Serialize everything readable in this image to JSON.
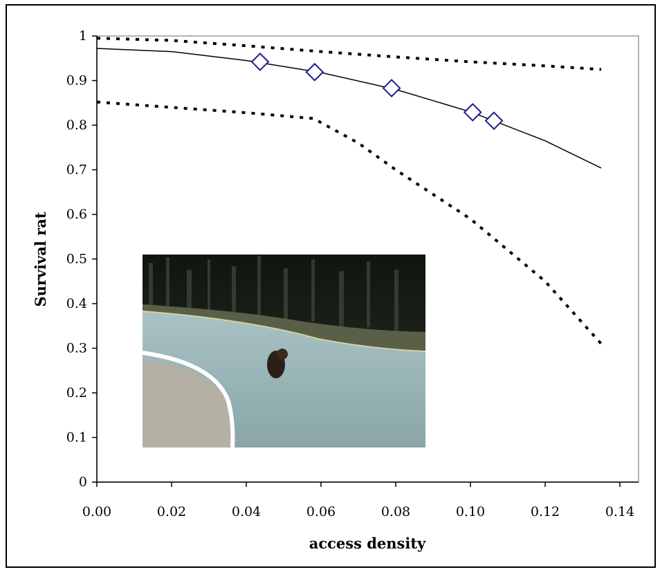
{
  "chart_data": {
    "type": "line",
    "xlabel": "access density",
    "ylabel": "Survival rat",
    "xlim": [
      0,
      0.145
    ],
    "ylim": [
      0,
      1
    ],
    "x_ticks": [
      "0.00",
      "0.02",
      "0.04",
      "0.06",
      "0.08",
      "0.10",
      "0.12",
      "0.14"
    ],
    "y_ticks": [
      "0",
      "0.1",
      "0.2",
      "0.3",
      "0.4",
      "0.5",
      "0.6",
      "0.7",
      "0.8",
      "0.9",
      "1"
    ],
    "grid": false,
    "series": [
      {
        "style": "solid",
        "color": "#000000",
        "x": [
          0,
          0.02,
          0.04,
          0.06,
          0.08,
          0.1,
          0.12,
          0.135
        ],
        "y": [
          0.972,
          0.965,
          0.945,
          0.918,
          0.88,
          0.83,
          0.765,
          0.704
        ]
      },
      {
        "style": "dotted",
        "color": "#000000",
        "x": [
          0,
          0.02,
          0.04,
          0.06,
          0.08,
          0.1,
          0.12,
          0.135
        ],
        "y": [
          0.995,
          0.99,
          0.978,
          0.965,
          0.953,
          0.942,
          0.933,
          0.925
        ]
      },
      {
        "style": "dotted",
        "color": "#000000",
        "x": [
          0,
          0.02,
          0.04,
          0.058,
          0.07,
          0.08,
          0.1,
          0.12,
          0.135
        ],
        "y": [
          0.852,
          0.84,
          0.828,
          0.815,
          0.76,
          0.7,
          0.59,
          0.45,
          0.31
        ]
      },
      {
        "style": "markers",
        "marker": "diamond",
        "color": "#1c1c8c",
        "x": [
          0.0437,
          0.0583,
          0.0789,
          0.1006,
          0.1063
        ],
        "y": [
          0.942,
          0.919,
          0.883,
          0.829,
          0.81
        ]
      }
    ]
  },
  "inset_photo": {
    "content": "brown bear walking on road",
    "colors": {
      "forest": "#20261f",
      "road": "#9cb8bb",
      "line": "#ffffff"
    }
  }
}
